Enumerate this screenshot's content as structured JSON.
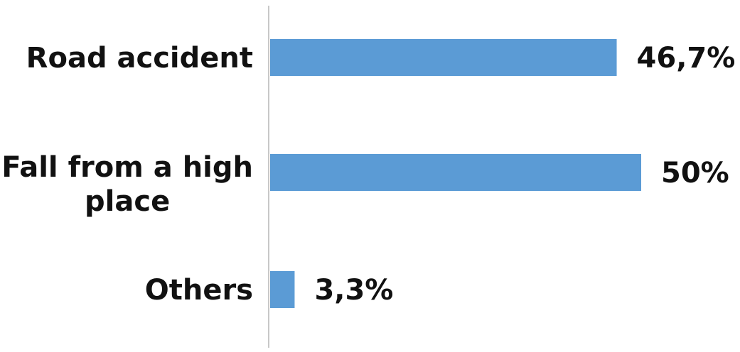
{
  "chart_data": {
    "type": "bar",
    "orientation": "horizontal",
    "categories": [
      [
        "Road accident"
      ],
      [
        "Fall from a high",
        "place"
      ],
      [
        "Others"
      ]
    ],
    "values": [
      46.7,
      50,
      3.3
    ],
    "value_labels": [
      "46,7%",
      "50%",
      "3,3%"
    ],
    "xlim": [
      0,
      50
    ],
    "grid": false,
    "legend": "none",
    "colors": {
      "bar": "#5b9bd5",
      "axis": "#c8c8c8",
      "text": "#111111",
      "background": "#ffffff"
    }
  }
}
